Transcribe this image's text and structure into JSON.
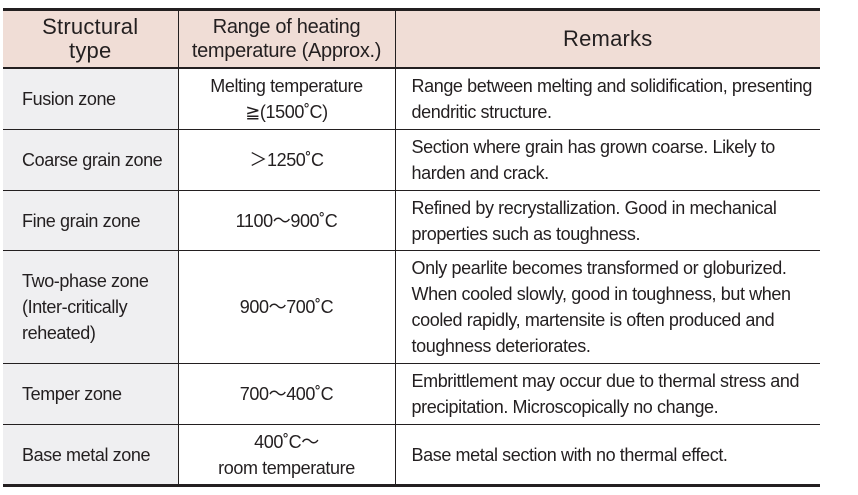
{
  "table": {
    "colors": {
      "header_bg": "#f0ddd6",
      "first_col_bg": "#efeff1",
      "border": "#231f20",
      "text": "#231f20"
    },
    "headers": {
      "structural_type": [
        "Structural",
        "type"
      ],
      "heating_range": [
        "Range of heating",
        "temperature (Approx.)"
      ],
      "remarks": [
        "Remarks"
      ]
    },
    "rows": [
      {
        "type": [
          "Fusion zone"
        ],
        "range": [
          "Melting temperature",
          "≧(1500˚C)"
        ],
        "remarks": [
          "Range between melting and solidification, presenting",
          "dendritic structure."
        ]
      },
      {
        "type": [
          "Coarse grain zone"
        ],
        "range": [
          "＞1250˚C"
        ],
        "remarks": [
          "Section where grain has grown coarse. Likely to",
          "harden and crack."
        ]
      },
      {
        "type": [
          "Fine grain zone"
        ],
        "range": [
          "1100～900˚C"
        ],
        "remarks": [
          "Refined by recrystallization. Good in mechanical",
          "properties such as toughness."
        ]
      },
      {
        "type": [
          "Two-phase zone",
          "(Inter-critically",
          "reheated)"
        ],
        "range": [
          "900～700˚C"
        ],
        "remarks": [
          "Only pearlite becomes transformed or globurized.",
          "When cooled slowly, good in toughness, but when",
          "cooled rapidly, martensite is often produced and",
          "toughness deteriorates."
        ]
      },
      {
        "type": [
          "Temper zone"
        ],
        "range": [
          "700～400˚C"
        ],
        "remarks": [
          "Embrittlement may occur due to thermal stress and",
          "precipitation. Microscopically no change."
        ]
      },
      {
        "type": [
          "Base metal zone"
        ],
        "range": [
          "400˚C～",
          "room temperature"
        ],
        "remarks": [
          "Base metal section with no thermal effect."
        ]
      }
    ]
  }
}
